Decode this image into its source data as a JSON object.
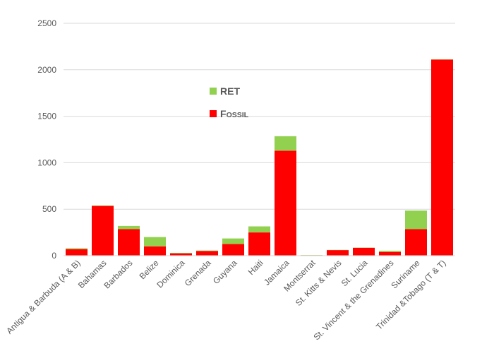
{
  "chart_data": {
    "type": "bar",
    "stacked": true,
    "categories": [
      "Antigua & Barbuda (A & B)",
      "Bahamas",
      "Barbados",
      "Belize",
      "Dominica",
      "Grenada",
      "Guyana",
      "Haiti",
      "Jamaica",
      "Montserrat",
      "St. Kitts & Nevis",
      "St. Lucia",
      "St. Vincent & the Grenadines",
      "Suriname",
      "Trinidad &Tobago (T & T)"
    ],
    "series": [
      {
        "name": "Fossil",
        "color": "#ff0000",
        "values": [
          70,
          535,
          285,
          100,
          25,
          50,
          125,
          250,
          1130,
          5,
          60,
          85,
          40,
          285,
          2110
        ]
      },
      {
        "name": "RET",
        "color": "#92d050",
        "values": [
          10,
          5,
          35,
          100,
          5,
          5,
          60,
          65,
          155,
          2,
          2,
          2,
          12,
          200,
          3
        ]
      }
    ],
    "legend": [
      {
        "label": "RET",
        "color": "#92d050"
      },
      {
        "label": "Fossil",
        "color": "#ff0000"
      }
    ],
    "legend_position": "inside-upper-left",
    "yticks": [
      0,
      500,
      1000,
      1500,
      2000,
      2500
    ],
    "ylim": [
      0,
      2500
    ],
    "grid": true,
    "title": "",
    "xlabel": "",
    "ylabel": ""
  }
}
